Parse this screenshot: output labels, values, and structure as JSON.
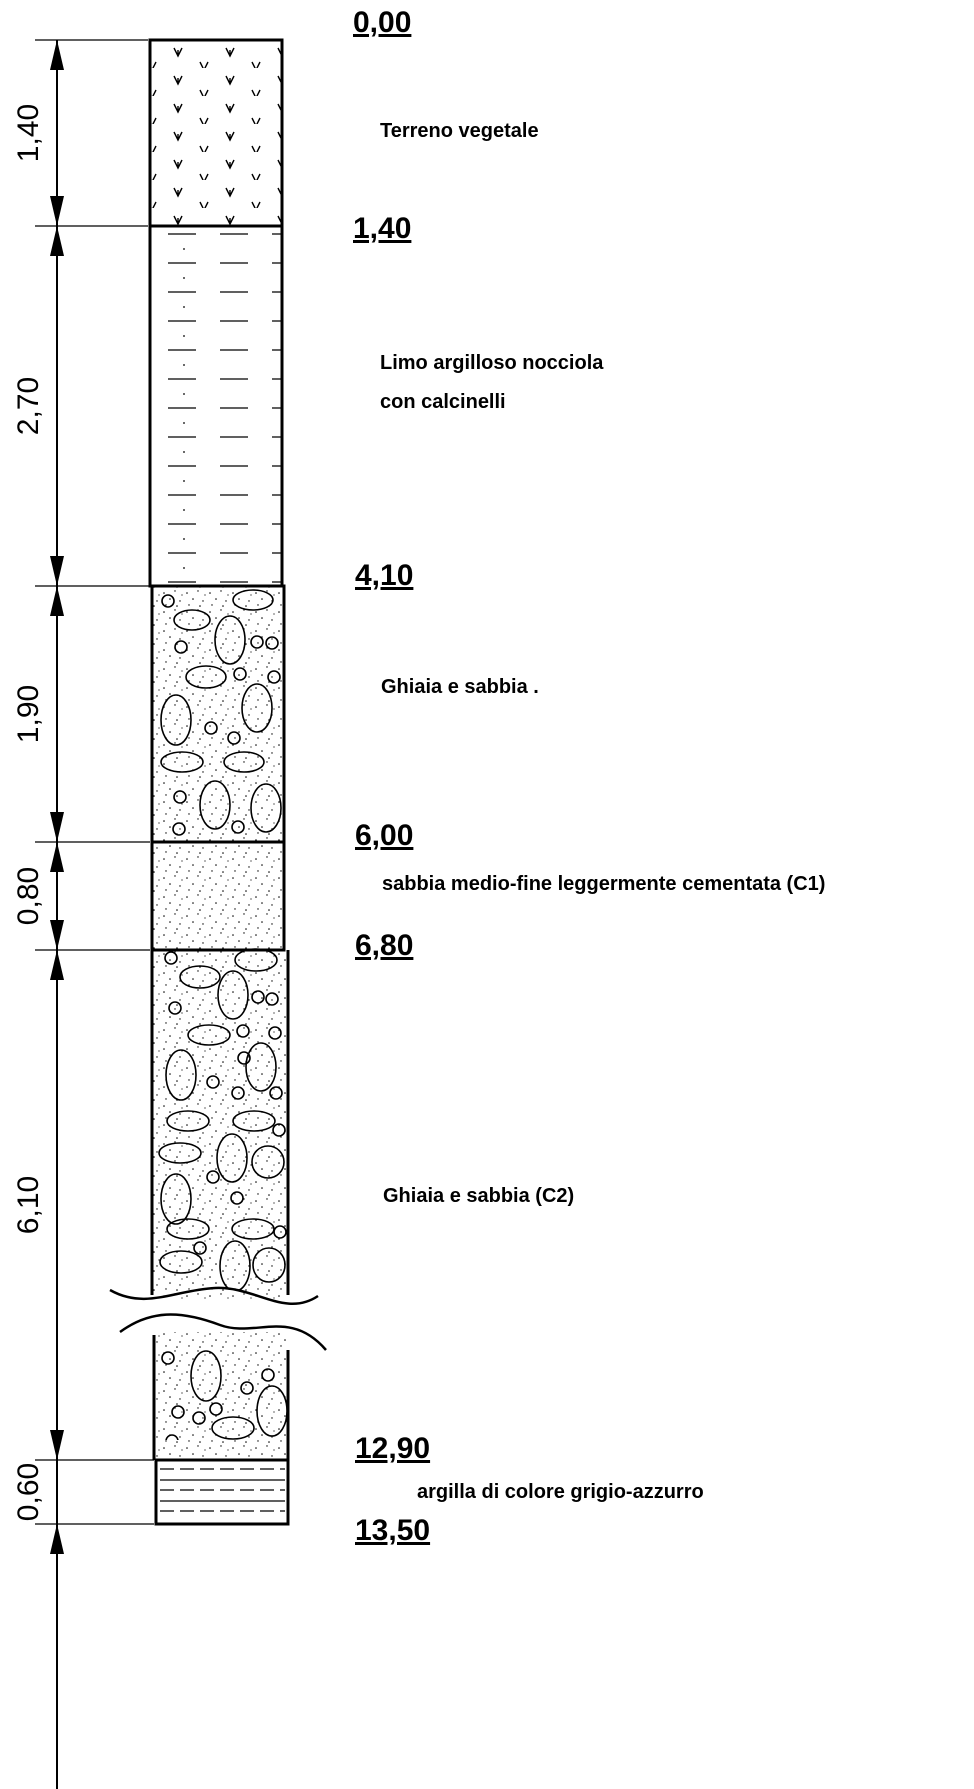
{
  "depths": [
    "0,00",
    "1,40",
    "4,10",
    "6,00",
    "6,80",
    "12,90",
    "13,50"
  ],
  "thicknesses": [
    "1,40",
    "2,70",
    "1,90",
    "0,80",
    "6,10",
    "0,60"
  ],
  "layers": [
    {
      "top": "0,00",
      "bottom": "1,40",
      "thickness": "1,40",
      "pattern": "vegetal-soil",
      "description": [
        "Terreno vegetale"
      ]
    },
    {
      "top": "1,40",
      "bottom": "4,10",
      "thickness": "2,70",
      "pattern": "silt-dashes",
      "description": [
        "Limo argilloso nocciola",
        "con calcinelli"
      ]
    },
    {
      "top": "4,10",
      "bottom": "6,00",
      "thickness": "1,90",
      "pattern": "gravel-sand",
      "description": [
        "Ghiaia e sabbia ."
      ]
    },
    {
      "top": "6,00",
      "bottom": "6,80",
      "thickness": "0,80",
      "pattern": "sand-dots",
      "description": [
        "sabbia medio-fine leggermente cementata (C1)"
      ]
    },
    {
      "top": "6,80",
      "bottom": "12,90",
      "thickness": "6,10",
      "pattern": "gravel-sand",
      "description": [
        "Ghiaia e sabbia (C2)"
      ]
    },
    {
      "top": "12,90",
      "bottom": "13,50",
      "thickness": "0,60",
      "pattern": "clay-lines",
      "description": [
        "argilla di colore grigio-azzurro"
      ]
    }
  ]
}
